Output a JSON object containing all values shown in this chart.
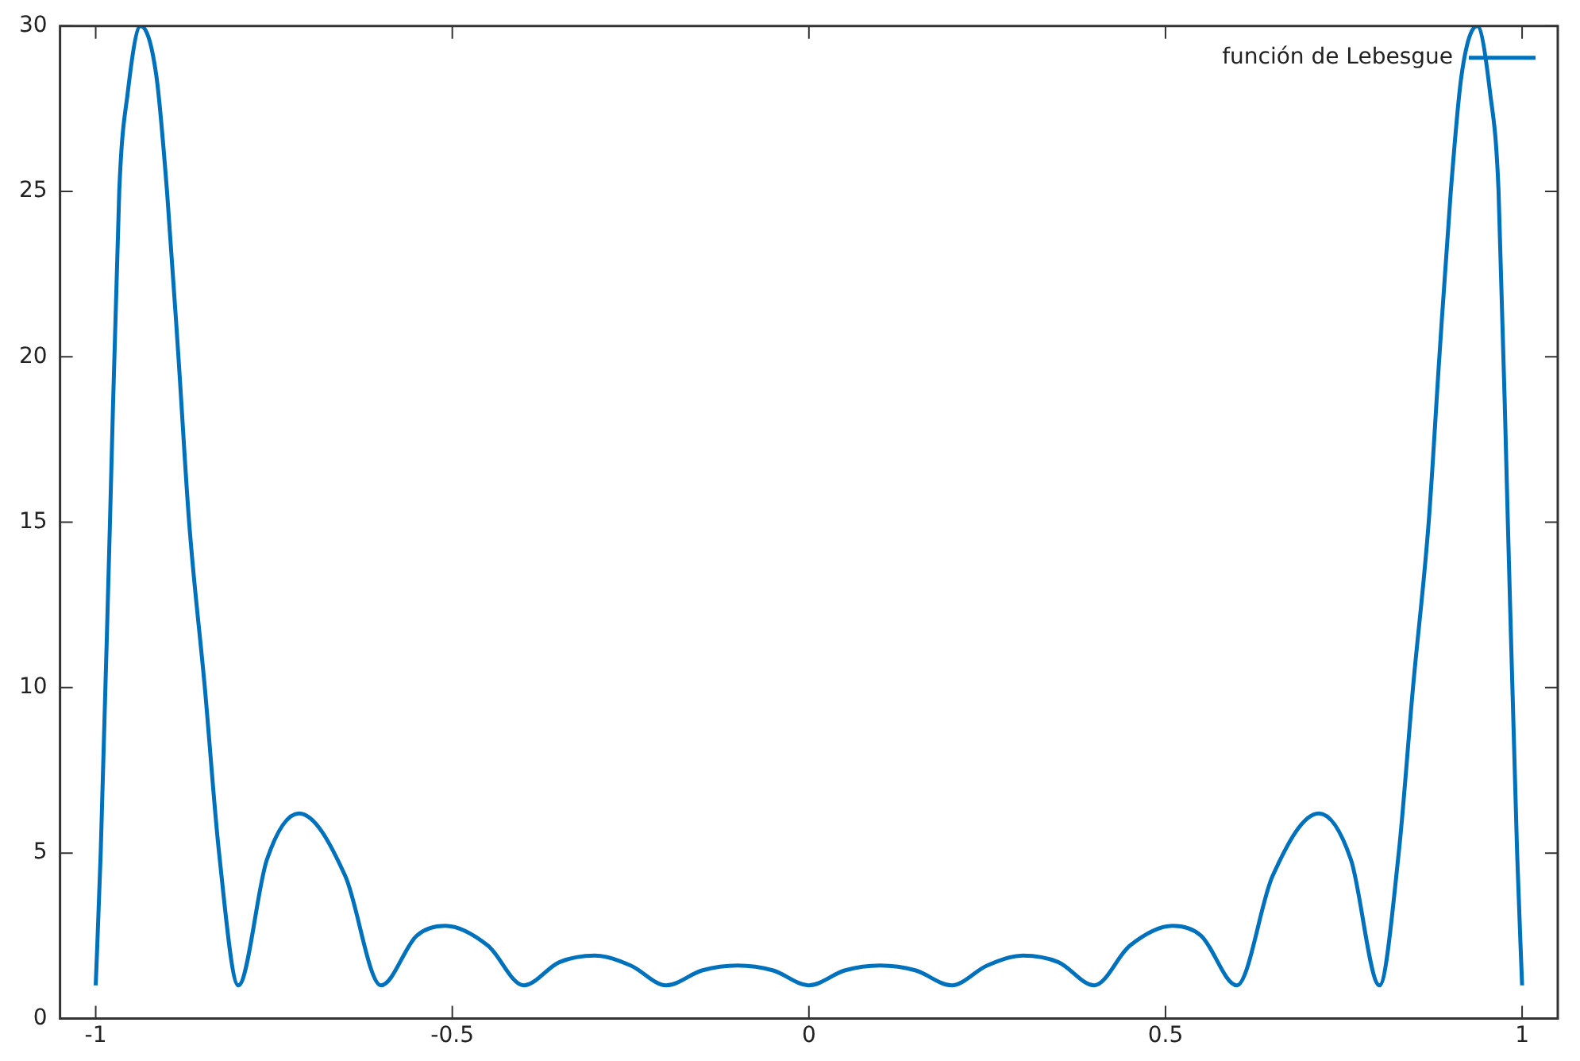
{
  "chart_data": {
    "type": "line",
    "legend": "top right",
    "grid": false,
    "x": [
      -1,
      -0.993,
      -0.98,
      -0.967,
      -0.955,
      -0.937,
      -0.915,
      -0.9,
      -0.884,
      -0.869,
      -0.847,
      -0.827,
      -0.8,
      -0.76,
      -0.715,
      -0.65,
      -0.6,
      -0.55,
      -0.51,
      -0.45,
      -0.4,
      -0.35,
      -0.3,
      -0.25,
      -0.2,
      -0.15,
      -0.1,
      -0.05,
      0,
      0.05,
      0.1,
      0.15,
      0.2,
      0.25,
      0.3,
      0.35,
      0.4,
      0.45,
      0.51,
      0.55,
      0.6,
      0.65,
      0.715,
      0.76,
      0.8,
      0.827,
      0.847,
      0.869,
      0.884,
      0.9,
      0.915,
      0.937,
      0.955,
      0.967,
      0.98,
      0.993,
      1
    ],
    "series": [
      {
        "name": "función de Lebesgue",
        "color": "#0072bd",
        "values": [
          1,
          5,
          15,
          25,
          28,
          30,
          28.5,
          25,
          20,
          15,
          10,
          5,
          1,
          4.8,
          6.2,
          4.3,
          1,
          2.5,
          2.8,
          2.2,
          1,
          1.7,
          1.9,
          1.6,
          1,
          1.45,
          1.6,
          1.45,
          1,
          1.45,
          1.6,
          1.45,
          1,
          1.6,
          1.9,
          1.7,
          1,
          2.2,
          2.8,
          2.5,
          1,
          4.3,
          6.2,
          4.8,
          1,
          5,
          10,
          15,
          20,
          25,
          28.5,
          30,
          28,
          25,
          15,
          5,
          1
        ]
      }
    ],
    "xlim": [
      -1.05,
      1.05
    ],
    "xticks": [
      -1,
      -0.5,
      0,
      0.5,
      1
    ],
    "ylim": [
      0,
      30
    ],
    "yticks": [
      0,
      5,
      10,
      15,
      20,
      25,
      30
    ]
  }
}
